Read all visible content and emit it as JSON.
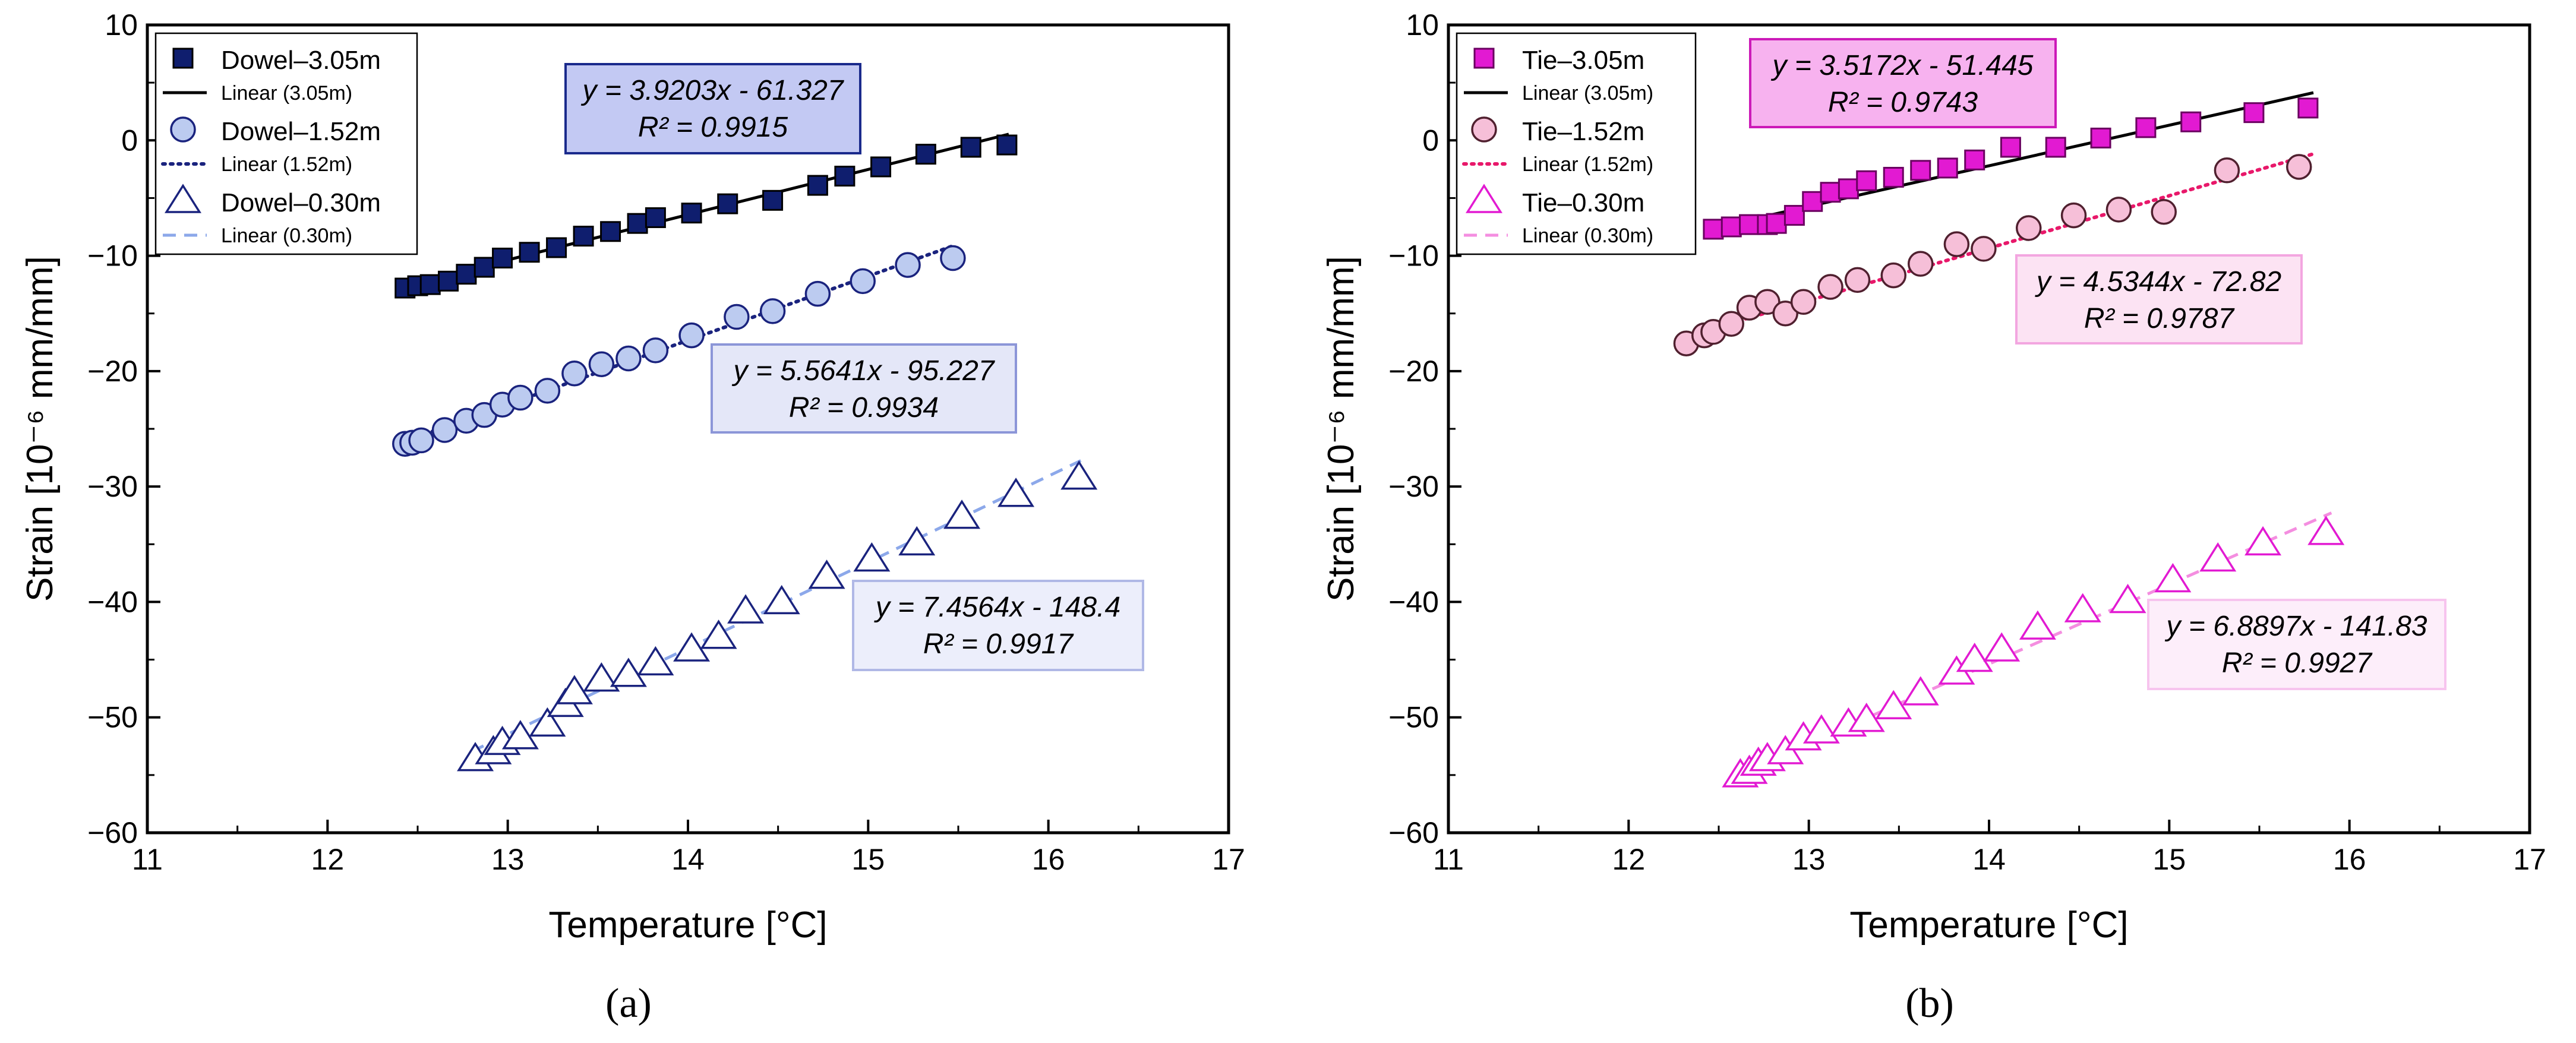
{
  "chart_data": [
    {
      "type": "scatter",
      "panel_label": "(a)",
      "xlabel": "Temperature [°C]",
      "ylabel": "Strain [10⁻⁶ mm/mm]",
      "xlim": [
        11,
        17
      ],
      "ylim": [
        -60,
        10
      ],
      "xticks": [
        11,
        12,
        13,
        14,
        15,
        16,
        17
      ],
      "yticks": [
        -60,
        -50,
        -40,
        -30,
        -20,
        -10,
        0,
        10
      ],
      "legend_position": "top-left",
      "series": [
        {
          "name": "Dowel–3.05m",
          "fit_name": "Linear (3.05m)",
          "marker": "square",
          "fill": "#0f1e6e",
          "stroke": "#000000",
          "fit_color": "#000000",
          "fit_style": "solid",
          "fit": {
            "slope": 3.9203,
            "intercept": -61.327,
            "x_range": [
              12.42,
              15.78
            ]
          },
          "equation": "y = 3.9203x - 61.327",
          "r2": "R² = 0.9915",
          "box_fill": "#c3c9f3",
          "box_stroke": "#1a2a8c",
          "x": [
            12.43,
            12.5,
            12.57,
            12.67,
            12.77,
            12.87,
            12.97,
            13.12,
            13.27,
            13.42,
            13.57,
            13.72,
            13.82,
            14.02,
            14.22,
            14.47,
            14.72,
            14.87,
            15.07,
            15.32,
            15.57,
            15.77
          ],
          "y": [
            -12.8,
            -12.6,
            -12.5,
            -12.2,
            -11.6,
            -11.0,
            -10.2,
            -9.7,
            -9.3,
            -8.3,
            -7.9,
            -7.2,
            -6.7,
            -6.3,
            -5.5,
            -5.2,
            -3.9,
            -3.1,
            -2.3,
            -1.2,
            -0.6,
            -0.4
          ]
        },
        {
          "name": "Dowel–1.52m",
          "fit_name": "Linear (1.52m)",
          "marker": "circle",
          "fill": "#bccbf0",
          "stroke": "#1a237e",
          "fit_color": "#1a237e",
          "fit_style": "dotted",
          "fit": {
            "slope": 5.5641,
            "intercept": -95.227,
            "x_range": [
              12.42,
              15.48
            ]
          },
          "equation": "y = 5.5641x - 95.227",
          "r2": "R² = 0.9934",
          "box_fill": "#e4e7f8",
          "box_stroke": "#8c96d8",
          "x": [
            12.43,
            12.47,
            12.52,
            12.65,
            12.77,
            12.87,
            12.97,
            13.07,
            13.22,
            13.37,
            13.52,
            13.67,
            13.82,
            14.02,
            14.27,
            14.47,
            14.72,
            14.97,
            15.22,
            15.47
          ],
          "y": [
            -26.3,
            -26.2,
            -26.0,
            -25.1,
            -24.3,
            -23.8,
            -22.9,
            -22.3,
            -21.7,
            -20.2,
            -19.4,
            -18.9,
            -18.2,
            -16.9,
            -15.3,
            -14.8,
            -13.3,
            -12.2,
            -10.8,
            -10.2
          ]
        },
        {
          "name": "Dowel–0.30m",
          "fit_name": "Linear (0.30m)",
          "marker": "triangle",
          "fill": "#ffffff",
          "stroke": "#1a237e",
          "fit_color": "#8ca8ea",
          "fit_style": "dashed",
          "fit": {
            "slope": 7.4564,
            "intercept": -148.4,
            "x_range": [
              12.8,
              16.18
            ]
          },
          "equation": "y = 7.4564x - 148.4",
          "r2": "R² = 0.9917",
          "box_fill": "#eceefb",
          "box_stroke": "#b0b8e6",
          "x": [
            12.82,
            12.92,
            12.97,
            13.07,
            13.22,
            13.32,
            13.37,
            13.52,
            13.67,
            13.82,
            14.02,
            14.17,
            14.32,
            14.52,
            14.77,
            15.02,
            15.27,
            15.52,
            15.82,
            16.17
          ],
          "y": [
            -53.6,
            -53.0,
            -52.2,
            -51.7,
            -50.6,
            -48.9,
            -47.8,
            -46.7,
            -46.3,
            -45.3,
            -44.1,
            -43.0,
            -40.8,
            -40.0,
            -37.8,
            -36.3,
            -34.9,
            -32.6,
            -30.7,
            -29.2
          ]
        }
      ]
    },
    {
      "type": "scatter",
      "panel_label": "(b)",
      "xlabel": "Temperature [°C]",
      "ylabel": "Strain [10⁻⁶ mm/mm]",
      "xlim": [
        11,
        17
      ],
      "ylim": [
        -60,
        10
      ],
      "xticks": [
        11,
        12,
        13,
        14,
        15,
        16,
        17
      ],
      "yticks": [
        -60,
        -50,
        -40,
        -30,
        -20,
        -10,
        0,
        10
      ],
      "legend_position": "top-left",
      "series": [
        {
          "name": "Tie–3.05m",
          "fit_name": "Linear (3.05m)",
          "marker": "square",
          "fill": "#e21ad2",
          "stroke": "#6a0060",
          "fit_color": "#000000",
          "fit_style": "solid",
          "fit": {
            "slope": 3.5172,
            "intercept": -51.445,
            "x_range": [
              12.42,
              15.8
            ]
          },
          "equation": "y = 3.5172x - 51.445",
          "r2": "R² = 0.9743",
          "box_fill": "#f7b2ef",
          "box_stroke": "#cc1ab8",
          "x": [
            12.47,
            12.57,
            12.67,
            12.77,
            12.82,
            12.92,
            13.02,
            13.12,
            13.22,
            13.32,
            13.47,
            13.62,
            13.77,
            13.92,
            14.12,
            14.37,
            14.62,
            14.87,
            15.12,
            15.47,
            15.77
          ],
          "y": [
            -7.7,
            -7.5,
            -7.3,
            -7.3,
            -7.2,
            -6.5,
            -5.3,
            -4.5,
            -4.2,
            -3.5,
            -3.2,
            -2.6,
            -2.4,
            -1.7,
            -0.6,
            -0.6,
            0.2,
            1.1,
            1.6,
            2.4,
            2.8
          ]
        },
        {
          "name": "Tie–1.52m",
          "fit_name": "Linear (1.52m)",
          "marker": "circle",
          "fill": "#f6bfd8",
          "stroke": "#50202f",
          "fit_color": "#e8186a",
          "fit_style": "dotted",
          "fit": {
            "slope": 4.5344,
            "intercept": -72.82,
            "x_range": [
              12.32,
              15.8
            ]
          },
          "equation": "y = 4.5344x - 72.82",
          "r2": "R² = 0.9787",
          "box_fill": "#fce3f3",
          "box_stroke": "#f3a6e0",
          "x": [
            12.32,
            12.42,
            12.47,
            12.57,
            12.67,
            12.77,
            12.87,
            12.97,
            13.12,
            13.27,
            13.47,
            13.62,
            13.82,
            13.97,
            14.22,
            14.47,
            14.72,
            14.97,
            15.32,
            15.72
          ],
          "y": [
            -17.6,
            -16.9,
            -16.6,
            -15.9,
            -14.5,
            -14.0,
            -15.0,
            -14.0,
            -12.7,
            -12.1,
            -11.7,
            -10.7,
            -9.0,
            -9.4,
            -7.6,
            -6.5,
            -6.0,
            -6.2,
            -2.6,
            -2.3
          ]
        },
        {
          "name": "Tie–0.30m",
          "fit_name": "Linear (0.30m)",
          "marker": "triangle",
          "fill": "#ffffff",
          "stroke": "#e21ad2",
          "fit_color": "#f48ee0",
          "fit_style": "dashed",
          "fit": {
            "slope": 6.8897,
            "intercept": -141.83,
            "x_range": [
              12.6,
              15.9
            ]
          },
          "equation": "y = 6.8897x - 141.83",
          "r2": "R² = 0.9927",
          "box_fill": "#fdeefa",
          "box_stroke": "#f7c4ee",
          "x": [
            12.62,
            12.67,
            12.72,
            12.77,
            12.87,
            12.97,
            13.07,
            13.22,
            13.32,
            13.47,
            13.62,
            13.82,
            13.92,
            14.07,
            14.27,
            14.52,
            14.77,
            15.02,
            15.27,
            15.52,
            15.87
          ],
          "y": [
            -55.0,
            -54.7,
            -54.0,
            -53.6,
            -53.0,
            -51.8,
            -51.2,
            -50.6,
            -50.2,
            -49.1,
            -47.9,
            -46.1,
            -45.0,
            -44.1,
            -42.2,
            -40.7,
            -39.9,
            -38.1,
            -36.3,
            -34.9,
            -34.0
          ]
        }
      ]
    }
  ]
}
